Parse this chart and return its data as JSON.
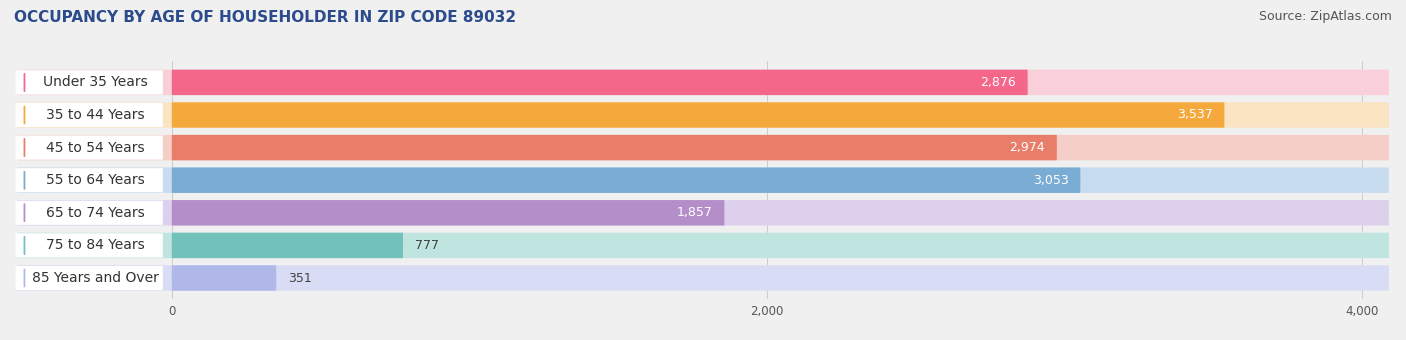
{
  "title": "OCCUPANCY BY AGE OF HOUSEHOLDER IN ZIP CODE 89032",
  "source": "Source: ZipAtlas.com",
  "categories": [
    "Under 35 Years",
    "35 to 44 Years",
    "45 to 54 Years",
    "55 to 64 Years",
    "65 to 74 Years",
    "75 to 84 Years",
    "85 Years and Over"
  ],
  "values": [
    2876,
    3537,
    2974,
    3053,
    1857,
    777,
    351
  ],
  "bar_colors": [
    "#F4678A",
    "#F5A93D",
    "#E87D6A",
    "#7BADD4",
    "#B48EC8",
    "#72C2BB",
    "#B0B8EA"
  ],
  "bar_bg_colors": [
    "#F9D0D9",
    "#FAE4C2",
    "#F5CEC8",
    "#C8DCF0",
    "#DDD0EC",
    "#C0E4E0",
    "#D8DCF4"
  ],
  "xlim_data": [
    0,
    4000
  ],
  "xticks": [
    0,
    2000,
    4000
  ],
  "title_fontsize": 11,
  "source_fontsize": 9,
  "label_fontsize": 10,
  "value_fontsize": 9,
  "background_color": "#f0f0f0"
}
